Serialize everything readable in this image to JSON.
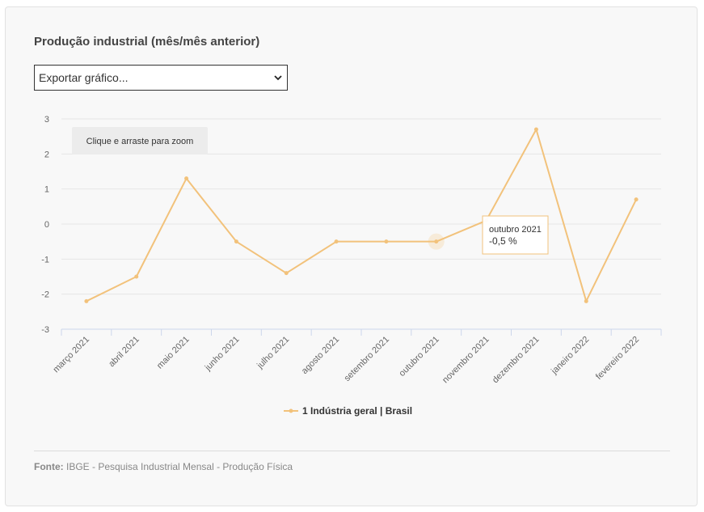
{
  "title": "Produção industrial (mês/mês anterior)",
  "export_select": {
    "value": "Exportar gráfico..."
  },
  "zoom_hint": "Clique e arraste para zoom",
  "tooltip": {
    "category": "outubro 2021",
    "value_text": "-0,5 %"
  },
  "source": {
    "label": "Fonte:",
    "text": " IBGE - Pesquisa Industrial Mensal - Produção Física"
  },
  "colors": {
    "series": "#f2c27b",
    "grid": "#e6e6e6",
    "axis": "#ccd6eb",
    "text": "#666666"
  },
  "chart_data": {
    "type": "line",
    "categories": [
      "março 2021",
      "abril 2021",
      "maio 2021",
      "junho 2021",
      "julho 2021",
      "agosto 2021",
      "setembro 2021",
      "outubro 2021",
      "novembro 2021",
      "dezembro 2021",
      "janeiro 2022",
      "fevereiro 2022"
    ],
    "series": [
      {
        "name": "1 Indústria geral | Brasil",
        "values": [
          -2.2,
          -1.5,
          1.3,
          -0.5,
          -1.4,
          -0.5,
          -0.5,
          -0.5,
          0.1,
          2.7,
          -2.2,
          0.7
        ]
      }
    ],
    "ylim": [
      -3,
      3
    ],
    "yticks": [
      "3",
      "2",
      "1",
      "0",
      "-1",
      "-2",
      "-3"
    ],
    "grid": true,
    "legend": "bottom-center",
    "highlighted_category": "outubro 2021"
  }
}
